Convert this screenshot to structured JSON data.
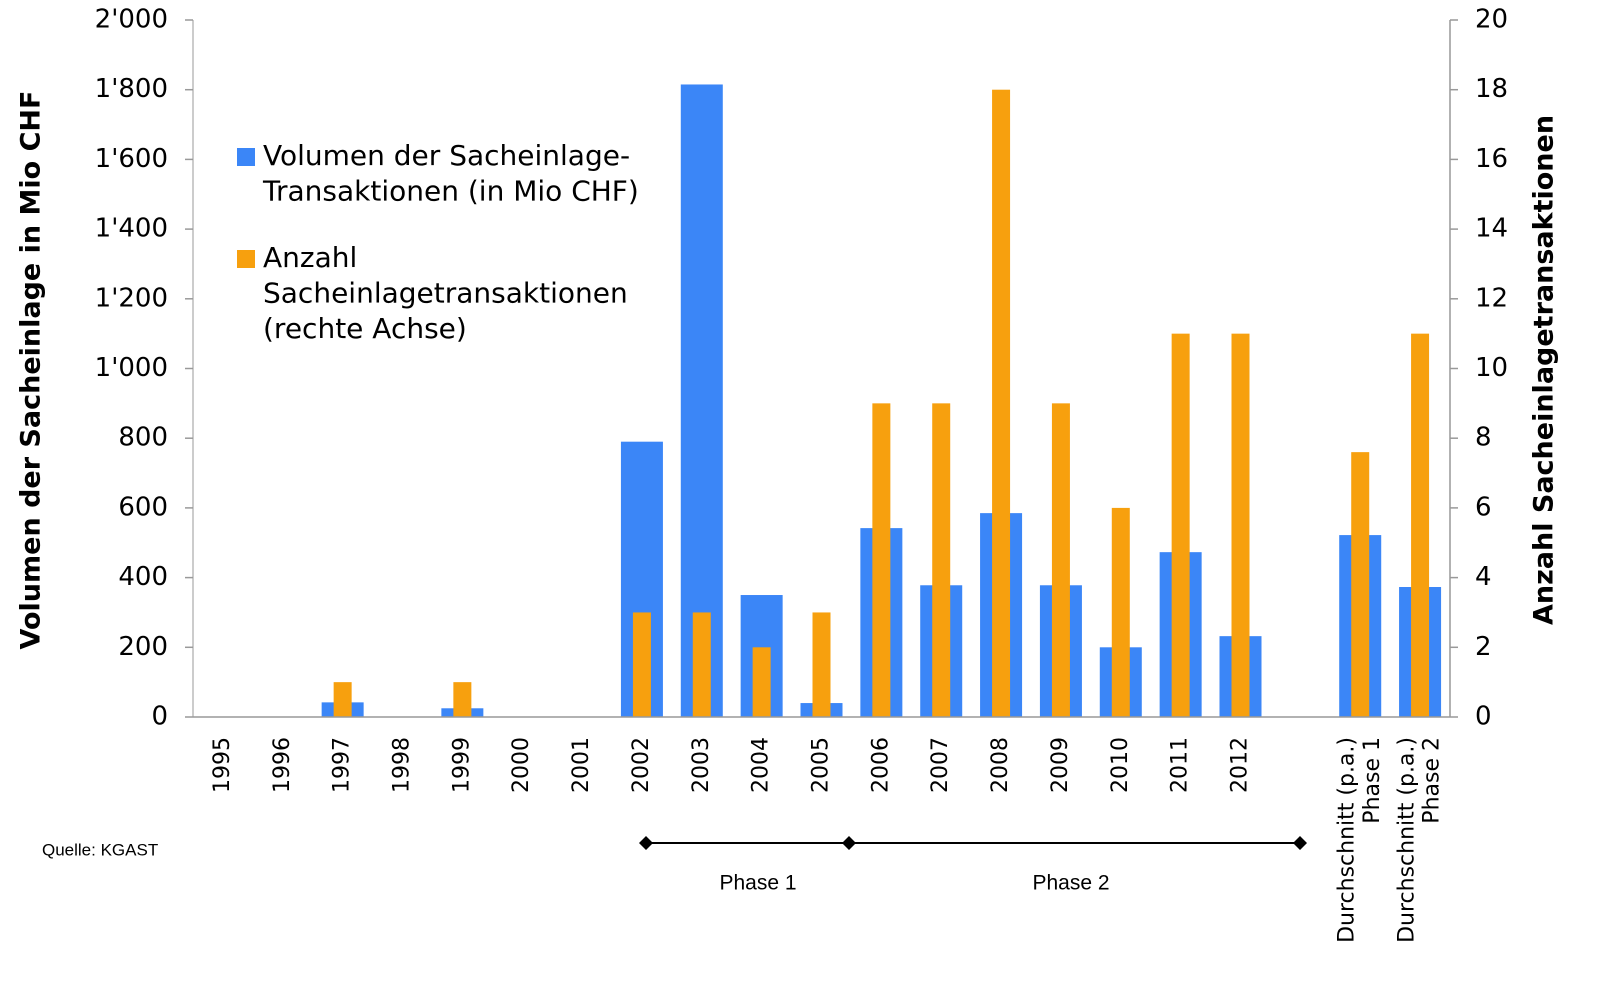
{
  "chart_data": {
    "type": "bar",
    "y_label": "Volumen der Sacheinlage in Mio CHF",
    "y2_label": "Anzahl Sacheinlagetransaktionen",
    "categories": [
      "1995",
      "1996",
      "1997",
      "1998",
      "1999",
      "2000",
      "2001",
      "2002",
      "2003",
      "2004",
      "2005",
      "2006",
      "2007",
      "2008",
      "2009",
      "2010",
      "2011",
      "2012",
      null,
      "Durchschnitt (p.a.)\nPhase 1",
      "Durchschnitt (p.a.)\nPhase 2"
    ],
    "series": [
      {
        "name": "Volumen der Sacheinlage-\nTransaktionen (in Mio CHF)",
        "color": "#3b86f7",
        "values": [
          0,
          0,
          42,
          0,
          25,
          0,
          0,
          790,
          1815,
          350,
          40,
          542,
          378,
          585,
          378,
          200,
          473,
          232,
          null,
          522,
          373
        ]
      },
      {
        "name": "Anzahl\nSacheinlagetransaktionen\n(rechte Achse)",
        "color": "#f7a00e",
        "axis": "y2",
        "values": [
          0,
          0,
          1,
          0,
          1,
          0,
          0,
          3,
          3,
          2,
          3,
          9,
          9,
          18,
          9,
          6,
          11,
          11,
          null,
          7.6,
          11
        ]
      }
    ],
    "ylim": [
      0,
      2000
    ],
    "yticks": [
      0,
      200,
      400,
      600,
      800,
      {
        "value": 1000,
        "label": "1'000"
      },
      {
        "value": 1200,
        "label": "1'200"
      },
      {
        "value": 1400,
        "label": "1'400"
      },
      {
        "value": 1600,
        "label": "1'600"
      },
      {
        "value": 1800,
        "label": "1'800"
      },
      {
        "value": 2000,
        "label": "2'000"
      }
    ],
    "y2lim": [
      0,
      20
    ],
    "y2ticks": [
      0,
      2,
      4,
      6,
      8,
      10,
      12,
      14,
      16,
      18,
      20
    ],
    "annotations": [
      "Quelle: KGAST",
      "Phase 1",
      "Phase 2"
    ],
    "grid": false,
    "legend": "upper left"
  }
}
